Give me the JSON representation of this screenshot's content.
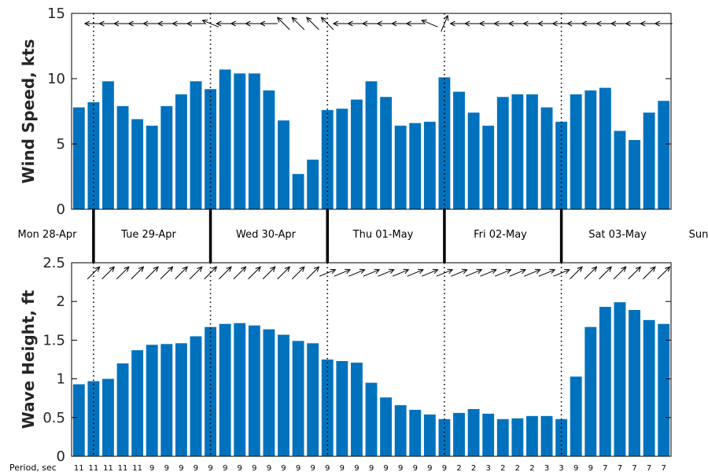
{
  "chart_data": [
    {
      "type": "bar",
      "ylabel": "Wind Speed, kts",
      "ylim": [
        0,
        15
      ],
      "yticks": [
        0,
        5,
        10,
        15
      ],
      "values": [
        7.8,
        8.2,
        9.8,
        7.9,
        6.9,
        6.4,
        7.9,
        8.8,
        9.8,
        9.2,
        10.7,
        10.4,
        10.4,
        9.1,
        6.8,
        2.7,
        3.8,
        7.6,
        7.7,
        8.4,
        9.8,
        8.6,
        6.4,
        6.6,
        6.7,
        10.1,
        9.0,
        7.4,
        6.4,
        8.6,
        8.8,
        8.8,
        7.8,
        6.7,
        8.8,
        9.1,
        9.3,
        6.0,
        5.3,
        7.4,
        8.3
      ],
      "arrow_directions": [
        "W",
        "W",
        "W",
        "W",
        "W",
        "W",
        "W",
        "W",
        "W",
        "WNW",
        "W",
        "W",
        "W",
        "W",
        "NW",
        "NW",
        "NW",
        "NW",
        "W",
        "W",
        "W",
        "W",
        "W",
        "W",
        "WNW",
        "NNE",
        "W",
        "W",
        "W",
        "W",
        "W",
        "W",
        "W",
        "W",
        "W",
        "W",
        "W",
        "W",
        "W",
        "W",
        "W"
      ],
      "bar_color": "#0072BD",
      "grid": false
    },
    {
      "type": "bar",
      "ylabel": "Wave Height, ft",
      "ylim": [
        0,
        2.5
      ],
      "yticks": [
        "0",
        "0.5",
        "1",
        "1.5",
        "2",
        "2.5"
      ],
      "values": [
        0.93,
        0.97,
        1.0,
        1.2,
        1.37,
        1.44,
        1.45,
        1.46,
        1.55,
        1.67,
        1.71,
        1.72,
        1.69,
        1.64,
        1.57,
        1.49,
        1.46,
        1.25,
        1.23,
        1.21,
        0.95,
        0.76,
        0.66,
        0.6,
        0.54,
        0.48,
        0.56,
        0.61,
        0.55,
        0.48,
        0.49,
        0.52,
        0.52,
        0.48,
        1.03,
        1.67,
        1.93,
        1.99,
        1.89,
        1.76,
        1.71
      ],
      "arrow_directions": [
        "NE",
        "NE",
        "NE",
        "NE",
        "NE",
        "NE",
        "NE",
        "NE",
        "NE",
        "NE",
        "NE",
        "NE",
        "NE",
        "NE",
        "NE",
        "NE",
        "NE",
        "ENE",
        "ENE",
        "ENE",
        "ENE",
        "ENE",
        "ENE",
        "ENE",
        "ENE",
        "ENE",
        "ENE",
        "ENE",
        "ENE",
        "ENE",
        "ENE",
        "ENE",
        "ENE",
        "ENE",
        "NE",
        "NE",
        "NE",
        "NE",
        "NE",
        "NE",
        "NE"
      ],
      "period_label": "Period, sec",
      "periods": [
        "11",
        "11",
        "11",
        "11",
        "11",
        "9",
        "9",
        "9",
        "9",
        "9",
        "9",
        "9",
        "9",
        "9",
        "9",
        "9",
        "9",
        "9",
        "9",
        "9",
        "9",
        "9",
        "9",
        "9",
        "9",
        "9",
        "2",
        "2",
        "3",
        "2",
        "2",
        "2",
        "3",
        "3",
        "9",
        "9",
        "7",
        "7",
        "7",
        "7",
        "7"
      ],
      "bar_color": "#0072BD",
      "grid": false
    }
  ],
  "day_labels": [
    "Mon 28-Apr",
    "Tue 29-Apr",
    "Wed 30-Apr",
    "Thu 01-May",
    "Fri 02-May",
    "Sat 03-May",
    "Sun"
  ],
  "colors": {
    "bar": "#0072BD",
    "axis": "#000000",
    "text": "#262626"
  }
}
